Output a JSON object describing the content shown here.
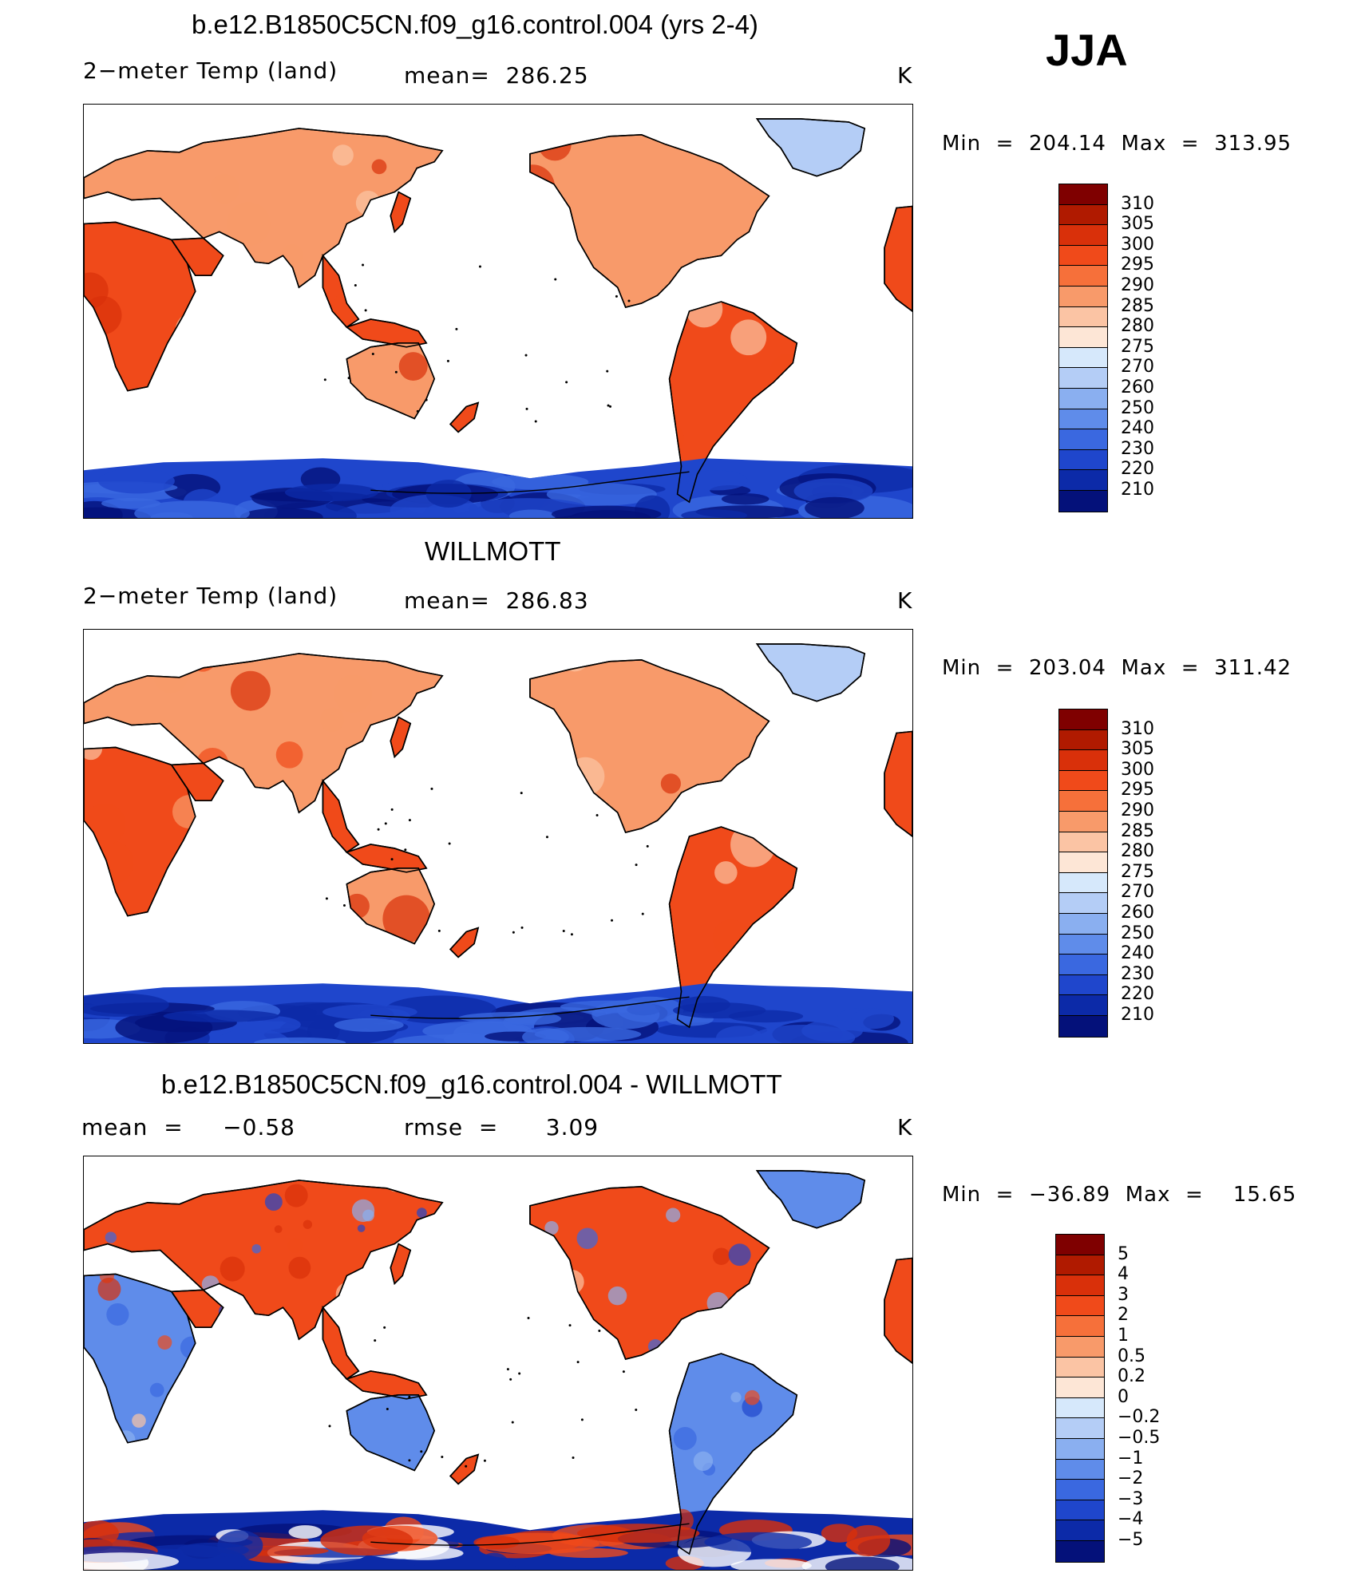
{
  "season": "JJA",
  "units": "K",
  "panels": [
    {
      "title": "b.e12.B1850C5CN.f09_g16.control.004 (yrs 2-4)",
      "left_label": "2−meter Temp (land)",
      "center_label": "mean=  286.25",
      "right_label": "K",
      "minmax": "Min  =  204.14  Max  =  313.95",
      "colorbar": {
        "labels": [
          "310",
          "305",
          "300",
          "295",
          "290",
          "285",
          "280",
          "275",
          "270",
          "260",
          "250",
          "240",
          "230",
          "220",
          "210"
        ],
        "colors": [
          "#7f0000",
          "#b01a00",
          "#d9300a",
          "#f04a1a",
          "#f6703a",
          "#f89a6a",
          "#fbc4a4",
          "#fde6d6",
          "#d6e8fb",
          "#b4cdf6",
          "#8aaff0",
          "#5f8cea",
          "#3a68e0",
          "#1f46cc",
          "#0c2aa8",
          "#04117a"
        ]
      },
      "kind": "model"
    },
    {
      "title": "WILLMOTT",
      "left_label": "2−meter Temp (land)",
      "center_label": "mean=  286.83",
      "right_label": "K",
      "minmax": "Min  =  203.04  Max  =  311.42",
      "colorbar": {
        "labels": [
          "310",
          "305",
          "300",
          "295",
          "290",
          "285",
          "280",
          "275",
          "270",
          "260",
          "250",
          "240",
          "230",
          "220",
          "210"
        ],
        "colors": [
          "#7f0000",
          "#b01a00",
          "#d9300a",
          "#f04a1a",
          "#f6703a",
          "#f89a6a",
          "#fbc4a4",
          "#fde6d6",
          "#d6e8fb",
          "#b4cdf6",
          "#8aaff0",
          "#5f8cea",
          "#3a68e0",
          "#1f46cc",
          "#0c2aa8",
          "#04117a"
        ]
      },
      "kind": "obs"
    },
    {
      "title": "b.e12.B1850C5CN.f09_g16.control.004 - WILLMOTT",
      "left_label": "mean  =     −0.58",
      "center_label": "rmse  =      3.09",
      "right_label": "K",
      "minmax": "Min  =  −36.89  Max  =    15.65",
      "colorbar": {
        "labels": [
          "5",
          "4",
          "3",
          "2",
          "1",
          "0.5",
          "0.2",
          "0",
          "−0.2",
          "−0.5",
          "−1",
          "−2",
          "−3",
          "−4",
          "−5"
        ],
        "colors": [
          "#7f0000",
          "#b01a00",
          "#d9300a",
          "#f04a1a",
          "#f6703a",
          "#f89a6a",
          "#fbc4a4",
          "#fde6d6",
          "#d6e8fb",
          "#b4cdf6",
          "#8aaff0",
          "#5f8cea",
          "#3a68e0",
          "#1f46cc",
          "#0c2aa8",
          "#04117a"
        ]
      },
      "kind": "diff"
    }
  ],
  "map_colors": {
    "warm_dark": "#d9300a",
    "warm_mid": "#f04a1a",
    "warm_light": "#f89a6a",
    "cool_pale": "#fbc4a4",
    "ice_blue": "#b4cdf6",
    "antarctic": "#1f46cc",
    "antarctic_deep": "#0c2aa8",
    "diff_blue": "#5f8cea"
  }
}
